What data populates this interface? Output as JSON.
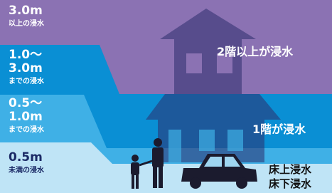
{
  "levels": [
    {
      "lines": [
        "3.0m"
      ],
      "note": "以上の浸水"
    },
    {
      "lines": [
        "1.0〜",
        "3.0m"
      ],
      "note": "までの浸水"
    },
    {
      "lines": [
        "0.5〜",
        "1.0m"
      ],
      "note": "までの浸水"
    },
    {
      "lines": [
        "0.5m"
      ],
      "note": "未満の浸水"
    }
  ],
  "floor_labels": [
    "2階以上が浸水",
    "1階が浸水"
  ],
  "bottom_labels": [
    "床上浸水",
    "床下浸水"
  ]
}
